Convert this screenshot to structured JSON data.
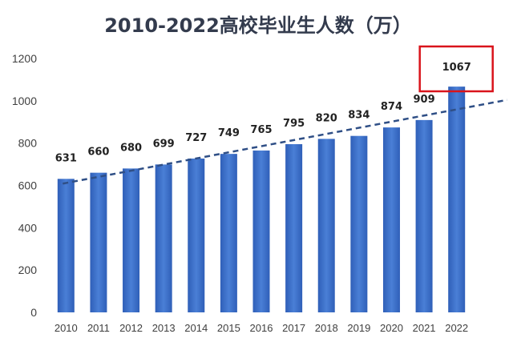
{
  "chart_data": {
    "type": "bar",
    "title": "2010-2022高校毕业生人数（万）",
    "categories": [
      "2010",
      "2011",
      "2012",
      "2013",
      "2014",
      "2015",
      "2016",
      "2017",
      "2018",
      "2019",
      "2020",
      "2021",
      "2022"
    ],
    "values": [
      631,
      660,
      680,
      699,
      727,
      749,
      765,
      795,
      820,
      834,
      874,
      909,
      1067
    ],
    "ylim": [
      0,
      1200
    ],
    "yticks": [
      0,
      200,
      400,
      600,
      800,
      1000,
      1200
    ],
    "grid": false,
    "legend": "none",
    "trendline": {
      "style": "dashed",
      "color": "#2f4f86"
    },
    "highlight": {
      "category": "2022",
      "color": "#d9141b"
    },
    "colors": {
      "bar": "#3a6cc8",
      "bar_light": "#6e97dc",
      "title": "#333b4d",
      "highlight_box": "#d9141b"
    }
  }
}
